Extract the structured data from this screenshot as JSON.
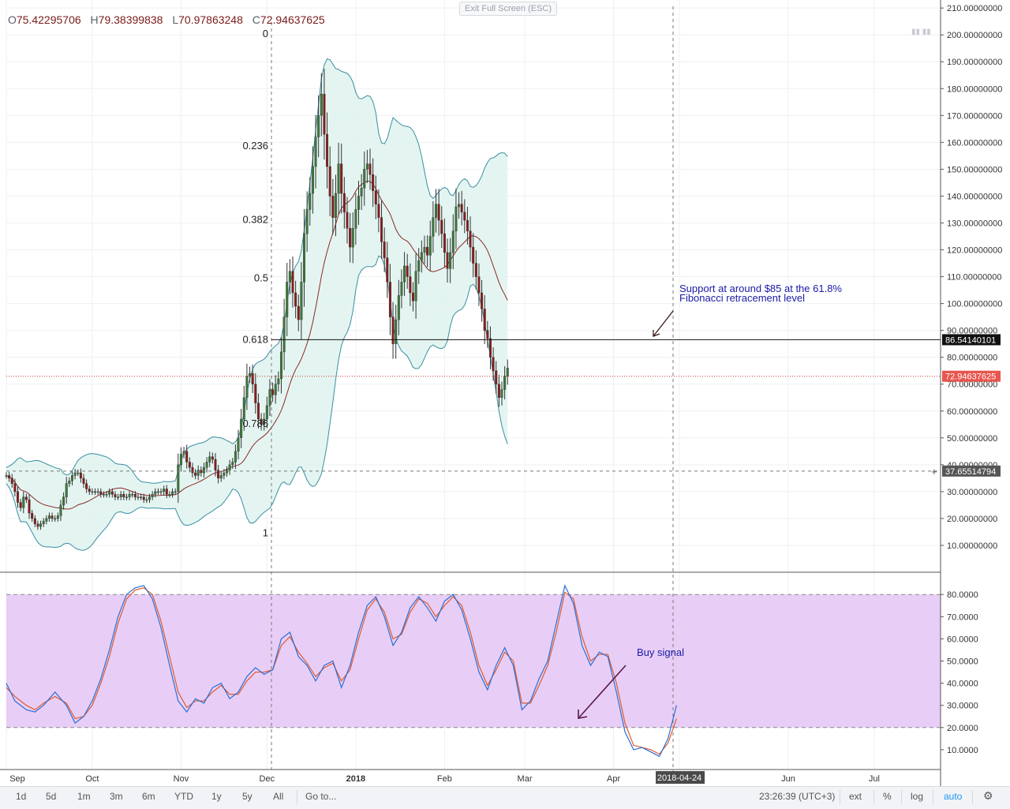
{
  "ohlc": {
    "o_label": "O",
    "o": "75.42295706",
    "h_label": "H",
    "h": "79.38399838",
    "l_label": "L",
    "l": "70.97863248",
    "c_label": "C",
    "c": "72.94637625"
  },
  "exit_fullscreen": "Exit Full Screen (ESC)",
  "price_labels": {
    "resistance": "86.54140101",
    "last": "72.94637625",
    "crosshair": "37.65514794",
    "date_marker": "2018-04-24"
  },
  "annotations": {
    "support": "Support at around $85 at the 61.8%\nFibonacci retracement level",
    "support_line1": "Support at around $85 at the 61.8%",
    "support_line2": "Fibonacci retracement level",
    "buy": "Buy signal"
  },
  "toolbar": {
    "ranges": [
      "1d",
      "5d",
      "1m",
      "3m",
      "6m",
      "YTD",
      "1y",
      "5y",
      "All"
    ],
    "goto": "Go to...",
    "time": "23:26:39 (UTC+3)",
    "ext": "ext",
    "percent": "%",
    "log": "log",
    "auto": "auto"
  },
  "colors": {
    "up": "#3c7a3a",
    "down": "#8b1a1a",
    "band_fill": "#dff3ef",
    "band_line": "#3a8fa3",
    "mid_line": "#8b2a2a",
    "stoch_bg": "#e6c9f5",
    "stoch_k": "#2a6fd6",
    "stoch_d": "#e05a2a",
    "annotation": "#1a1aa6"
  },
  "chart_data": [
    {
      "type": "candlestick",
      "title": "",
      "y_axis_ticks": [
        10,
        20,
        30,
        40,
        50,
        60,
        70,
        80,
        90,
        100,
        110,
        120,
        130,
        140,
        150,
        160,
        170,
        180,
        190,
        200,
        210
      ],
      "y_axis_labels": [
        "10.00000000",
        "20.00000000",
        "30.00000000",
        "40.00000000",
        "50.00000000",
        "60.00000000",
        "70.00000000",
        "80.00000000",
        "90.00000000",
        "100.00000000",
        "110.00000000",
        "120.00000000",
        "130.00000000",
        "140.00000000",
        "150.00000000",
        "160.00000000",
        "170.00000000",
        "180.00000000",
        "190.00000000",
        "200.00000000",
        "210.00000000"
      ],
      "ylim": [
        0,
        213
      ],
      "x_labels": [
        "Sep",
        "Oct",
        "Nov",
        "Dec",
        "2018",
        "Feb",
        "Mar",
        "Apr",
        "2018-04-24",
        "Jun",
        "Jul"
      ],
      "x_label_days": [
        0,
        30,
        61,
        91,
        122,
        153,
        181,
        212,
        235,
        273,
        303
      ],
      "fib_levels": [
        {
          "label": "0",
          "price": 200.4
        },
        {
          "label": "0.236",
          "price": 158.6
        },
        {
          "label": "0.382",
          "price": 131.2
        },
        {
          "label": "0.5",
          "price": 109.4
        },
        {
          "label": "0.618",
          "price": 86.5
        },
        {
          "label": "0.786",
          "price": 55.3
        },
        {
          "label": "1",
          "price": 14.6
        }
      ],
      "resistance_price": 86.54140101,
      "last_price": 72.94637625,
      "crosshair_price": 37.65514794,
      "bollinger_bands": true,
      "moving_average": true,
      "closes": [
        36,
        35,
        33,
        30,
        26,
        24,
        28,
        27,
        22,
        20,
        18,
        17,
        18,
        19,
        20,
        21,
        20,
        20,
        21,
        25,
        28,
        33,
        34,
        36,
        37,
        37,
        35,
        33,
        31,
        30,
        30,
        30,
        30,
        29,
        29,
        29,
        30,
        29,
        28,
        28,
        29,
        28,
        28,
        29,
        29,
        28,
        28,
        28,
        27,
        27,
        28,
        29,
        30,
        30,
        30,
        31,
        29,
        29,
        30,
        30,
        40,
        44,
        45,
        41,
        39,
        37,
        36,
        38,
        37,
        39,
        41,
        43,
        42,
        38,
        35,
        36,
        37,
        38,
        40,
        41,
        45,
        50,
        57,
        65,
        73,
        74,
        70,
        63,
        57,
        55,
        57,
        62,
        68,
        66,
        70,
        72,
        82,
        95,
        108,
        112,
        104,
        99,
        94,
        108,
        126,
        135,
        141,
        151,
        162,
        170,
        178,
        163,
        151,
        140,
        132,
        141,
        152,
        141,
        134,
        128,
        121,
        128,
        135,
        140,
        143,
        150,
        152,
        148,
        142,
        137,
        132,
        123,
        117,
        108,
        95,
        85,
        94,
        103,
        108,
        114,
        110,
        104,
        101,
        112,
        116,
        119,
        121,
        118,
        125,
        132,
        137,
        131,
        126,
        119,
        113,
        119,
        127,
        136,
        137,
        134,
        131,
        127,
        121,
        115,
        110,
        104,
        98,
        90,
        87,
        80,
        75,
        70,
        65,
        68,
        73,
        76
      ],
      "stochastic": {
        "y_axis_ticks": [
          10,
          20,
          30,
          40,
          50,
          60,
          70,
          80
        ],
        "y_axis_labels": [
          "10.0000",
          "20.0000",
          "30.0000",
          "40.0000",
          "50.0000",
          "60.0000",
          "70.0000",
          "80.0000"
        ],
        "overbought": 80,
        "oversold": 20,
        "k_points": [
          [
            0,
            40
          ],
          [
            3,
            32
          ],
          [
            7,
            28
          ],
          [
            10,
            27
          ],
          [
            13,
            30
          ],
          [
            17,
            36
          ],
          [
            21,
            30
          ],
          [
            24,
            22
          ],
          [
            27,
            25
          ],
          [
            30,
            32
          ],
          [
            33,
            42
          ],
          [
            36,
            55
          ],
          [
            39,
            70
          ],
          [
            42,
            80
          ],
          [
            45,
            83
          ],
          [
            48,
            84
          ],
          [
            51,
            78
          ],
          [
            54,
            65
          ],
          [
            57,
            48
          ],
          [
            60,
            32
          ],
          [
            63,
            27
          ],
          [
            66,
            33
          ],
          [
            69,
            31
          ],
          [
            72,
            38
          ],
          [
            75,
            40
          ],
          [
            78,
            33
          ],
          [
            81,
            36
          ],
          [
            84,
            43
          ],
          [
            87,
            47
          ],
          [
            90,
            44
          ],
          [
            93,
            46
          ],
          [
            96,
            60
          ],
          [
            99,
            63
          ],
          [
            102,
            52
          ],
          [
            105,
            48
          ],
          [
            108,
            41
          ],
          [
            111,
            48
          ],
          [
            114,
            50
          ],
          [
            117,
            38
          ],
          [
            120,
            48
          ],
          [
            123,
            63
          ],
          [
            126,
            75
          ],
          [
            129,
            79
          ],
          [
            132,
            70
          ],
          [
            135,
            57
          ],
          [
            138,
            63
          ],
          [
            141,
            74
          ],
          [
            144,
            79
          ],
          [
            147,
            74
          ],
          [
            150,
            68
          ],
          [
            153,
            77
          ],
          [
            156,
            80
          ],
          [
            159,
            73
          ],
          [
            162,
            60
          ],
          [
            165,
            45
          ],
          [
            168,
            37
          ],
          [
            171,
            48
          ],
          [
            174,
            56
          ],
          [
            177,
            48
          ],
          [
            180,
            28
          ],
          [
            183,
            32
          ],
          [
            186,
            42
          ],
          [
            189,
            50
          ],
          [
            192,
            67
          ],
          [
            195,
            84
          ],
          [
            198,
            76
          ],
          [
            201,
            57
          ],
          [
            204,
            48
          ],
          [
            207,
            54
          ],
          [
            210,
            52
          ],
          [
            213,
            36
          ],
          [
            216,
            18
          ],
          [
            219,
            10
          ],
          [
            222,
            11
          ],
          [
            225,
            9
          ],
          [
            228,
            7
          ],
          [
            231,
            15
          ],
          [
            234,
            30
          ]
        ],
        "d_points": [
          [
            0,
            38
          ],
          [
            3,
            34
          ],
          [
            7,
            30
          ],
          [
            10,
            28
          ],
          [
            13,
            31
          ],
          [
            17,
            34
          ],
          [
            21,
            31
          ],
          [
            24,
            24
          ],
          [
            27,
            25
          ],
          [
            30,
            30
          ],
          [
            33,
            40
          ],
          [
            36,
            52
          ],
          [
            39,
            67
          ],
          [
            42,
            78
          ],
          [
            45,
            82
          ],
          [
            48,
            83
          ],
          [
            51,
            80
          ],
          [
            54,
            68
          ],
          [
            57,
            52
          ],
          [
            60,
            36
          ],
          [
            63,
            29
          ],
          [
            66,
            32
          ],
          [
            69,
            32
          ],
          [
            72,
            36
          ],
          [
            75,
            39
          ],
          [
            78,
            35
          ],
          [
            81,
            35
          ],
          [
            84,
            41
          ],
          [
            87,
            45
          ],
          [
            90,
            45
          ],
          [
            93,
            46
          ],
          [
            96,
            57
          ],
          [
            99,
            61
          ],
          [
            102,
            54
          ],
          [
            105,
            49
          ],
          [
            108,
            43
          ],
          [
            111,
            47
          ],
          [
            114,
            49
          ],
          [
            117,
            41
          ],
          [
            120,
            46
          ],
          [
            123,
            60
          ],
          [
            126,
            73
          ],
          [
            129,
            78
          ],
          [
            132,
            72
          ],
          [
            135,
            60
          ],
          [
            138,
            62
          ],
          [
            141,
            72
          ],
          [
            144,
            78
          ],
          [
            147,
            76
          ],
          [
            150,
            70
          ],
          [
            153,
            75
          ],
          [
            156,
            79
          ],
          [
            159,
            75
          ],
          [
            162,
            63
          ],
          [
            165,
            48
          ],
          [
            168,
            39
          ],
          [
            171,
            46
          ],
          [
            174,
            54
          ],
          [
            177,
            50
          ],
          [
            180,
            31
          ],
          [
            183,
            31
          ],
          [
            186,
            39
          ],
          [
            189,
            48
          ],
          [
            192,
            63
          ],
          [
            195,
            81
          ],
          [
            198,
            78
          ],
          [
            201,
            61
          ],
          [
            204,
            50
          ],
          [
            207,
            53
          ],
          [
            210,
            53
          ],
          [
            213,
            40
          ],
          [
            216,
            22
          ],
          [
            219,
            12
          ],
          [
            222,
            11
          ],
          [
            225,
            10
          ],
          [
            228,
            8
          ],
          [
            231,
            13
          ],
          [
            234,
            24
          ]
        ]
      }
    }
  ]
}
